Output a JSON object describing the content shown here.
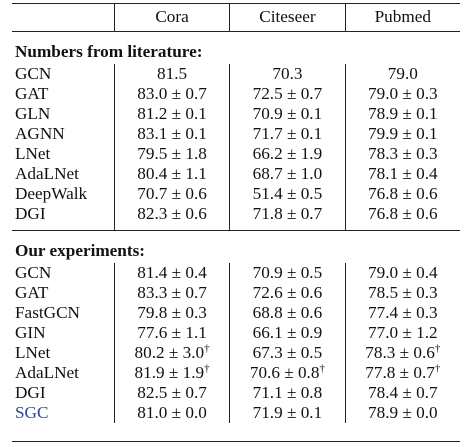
{
  "columns": [
    "",
    "Cora",
    "Citeseer",
    "Pubmed"
  ],
  "sections": [
    {
      "title": "Numbers from literature:",
      "rows": [
        [
          "GCN",
          "81.5",
          "70.3",
          "79.0"
        ],
        [
          "GAT",
          "83.0 ± 0.7",
          "72.5 ± 0.7",
          "79.0 ± 0.3"
        ],
        [
          "GLN",
          "81.2 ± 0.1",
          "70.9 ± 0.1",
          "78.9 ± 0.1"
        ],
        [
          "AGNN",
          "83.1 ± 0.1",
          "71.7 ± 0.1",
          "79.9 ± 0.1"
        ],
        [
          "LNet",
          "79.5 ± 1.8",
          "66.2 ± 1.9",
          "78.3 ± 0.3"
        ],
        [
          "AdaLNet",
          "80.4 ± 1.1",
          "68.7 ± 1.0",
          "78.1 ± 0.4"
        ],
        [
          "DeepWalk",
          "70.7 ± 0.6",
          "51.4 ± 0.5",
          "76.8 ± 0.6"
        ],
        [
          "DGI",
          "82.3 ± 0.6",
          "71.8 ± 0.7",
          "76.8 ± 0.6"
        ]
      ]
    },
    {
      "title": "Our experiments:",
      "rows": [
        [
          "GCN",
          "81.4 ± 0.4",
          "70.9 ± 0.5",
          "79.0 ± 0.4"
        ],
        [
          "GAT",
          "83.3 ± 0.7",
          "72.6 ± 0.6",
          "78.5 ± 0.3"
        ],
        [
          "FastGCN",
          "79.8 ± 0.3",
          "68.8 ± 0.6",
          "77.4 ± 0.3"
        ],
        [
          "GIN",
          "77.6 ± 1.1",
          "66.1 ± 0.9",
          "77.0 ± 1.2"
        ],
        [
          "LNet",
          "80.2 ± 3.0†",
          "67.3 ± 0.5",
          "78.3 ± 0.6†"
        ],
        [
          "AdaLNet",
          "81.9 ± 1.9†",
          "70.6 ± 0.8†",
          "77.8 ± 0.7†"
        ],
        [
          "DGI",
          "82.5 ± 0.7",
          "71.1 ± 0.8",
          "78.4 ± 0.7"
        ],
        [
          "SGC",
          "81.0 ± 0.0",
          "71.9 ± 0.1",
          "78.9 ± 0.0"
        ]
      ]
    }
  ],
  "highlight_color": "#2b48a0"
}
